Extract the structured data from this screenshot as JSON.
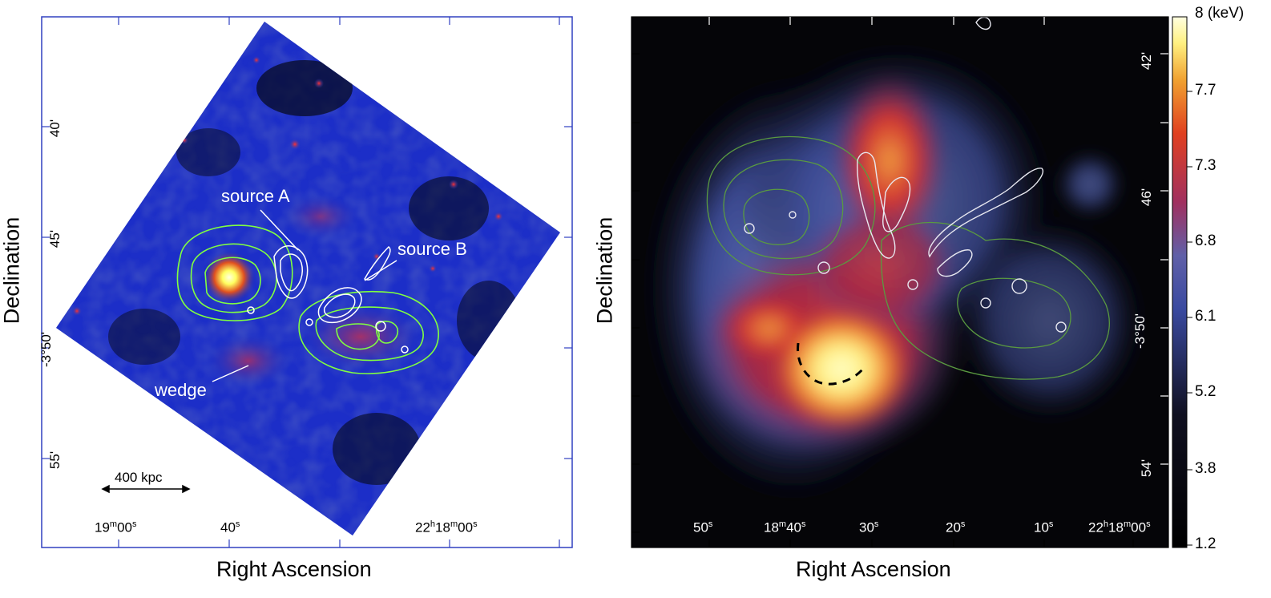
{
  "left_panel": {
    "xlabel": "Right Ascension",
    "ylabel": "Declination",
    "dec_ticks": [
      "40'",
      "45'",
      "-3°50'",
      "55'"
    ],
    "ra_ticks": [
      "19m00s",
      "40s",
      "22h18m00s"
    ],
    "ra_tick_parts": [
      {
        "pre": "19",
        "sup1": "m",
        "mid": "00",
        "sup2": "s"
      },
      {
        "pre": "40",
        "sup1": "s",
        "mid": "",
        "sup2": ""
      },
      {
        "pre": "22",
        "sup1": "h",
        "mid": "18",
        "sup2": "m",
        "post": "00",
        "sup3": "s"
      }
    ],
    "annotations": {
      "source_a": "source A",
      "source_b": "source B",
      "wedge": "wedge",
      "scalebar": "400 kpc"
    }
  },
  "right_panel": {
    "xlabel": "Right Ascension",
    "ylabel": "Declination",
    "dec_ticks": [
      "42'",
      "46'",
      "-3°50'",
      "54'"
    ],
    "ra_ticks": [
      "50s",
      "18m40s",
      "30s",
      "20s",
      "10s",
      "22h18m00s"
    ],
    "colorbar": {
      "unit_label": "8 (keV)",
      "ticks": [
        "7.7",
        "7.3",
        "6.8",
        "6.1",
        "5.2",
        "3.8",
        "1.2"
      ],
      "colors": [
        "#000000",
        "#1a1a3a",
        "#3a4aa0",
        "#a03060",
        "#e04020",
        "#f0a030",
        "#fff080",
        "#ffffe0"
      ]
    }
  }
}
